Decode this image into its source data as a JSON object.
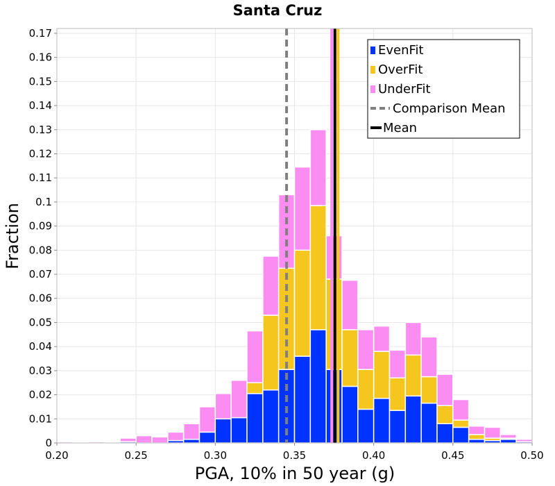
{
  "chart_data": {
    "type": "bar",
    "stacked": true,
    "title": "Santa Cruz",
    "xlabel": "PGA, 10% in 50 year (g)",
    "ylabel": "Fraction",
    "xlim": [
      0.2,
      0.5
    ],
    "ylim": [
      0,
      0.172
    ],
    "bin_width": 0.01,
    "xticks": [
      "0.20",
      "0.25",
      "0.30",
      "0.35",
      "0.40",
      "0.45",
      "0.50"
    ],
    "yticks": [
      "0",
      "0.01",
      "0.02",
      "0.03",
      "0.04",
      "0.05",
      "0.06",
      "0.07",
      "0.08",
      "0.09",
      "0.1",
      "0.11",
      "0.12",
      "0.13",
      "0.14",
      "0.15",
      "0.16",
      "0.17"
    ],
    "bin_starts": [
      0.2,
      0.21,
      0.22,
      0.23,
      0.24,
      0.25,
      0.26,
      0.27,
      0.28,
      0.29,
      0.3,
      0.31,
      0.32,
      0.33,
      0.34,
      0.35,
      0.36,
      0.37,
      0.38,
      0.39,
      0.4,
      0.41,
      0.42,
      0.43,
      0.44,
      0.45,
      0.46,
      0.47,
      0.48,
      0.49
    ],
    "series": [
      {
        "name": "EvenFit",
        "color": "#0033ff",
        "values": [
          0,
          0,
          0,
          0,
          0.0005,
          0,
          0,
          0.001,
          0.0015,
          0.0045,
          0.01,
          0.0105,
          0.0205,
          0.022,
          0.0305,
          0.036,
          0.047,
          0.0305,
          0.0235,
          0.014,
          0.0185,
          0.0135,
          0.0195,
          0.0165,
          0.008,
          0.0065,
          0.0015,
          0.001,
          0.0015,
          0.0005
        ]
      },
      {
        "name": "OverFit",
        "color": "#f5c61e",
        "values": [
          0,
          0,
          0,
          0,
          0,
          0,
          0,
          0,
          0,
          0,
          0,
          0,
          0.0045,
          0.031,
          0.042,
          0.044,
          0.0515,
          0.0375,
          0.0235,
          0.0165,
          0.0195,
          0.0135,
          0.017,
          0.011,
          0.0075,
          0.003,
          0.002,
          0.001,
          0.0005,
          0
        ]
      },
      {
        "name": "UnderFit",
        "color": "#fb8cf2",
        "values": [
          0.0005,
          0,
          0.0005,
          0,
          0.0015,
          0.003,
          0.0025,
          0.0035,
          0.0065,
          0.0105,
          0.0105,
          0.0155,
          0.0215,
          0.0245,
          0.0305,
          0.0345,
          0.0315,
          0.018,
          0.0205,
          0.0165,
          0.0105,
          0.0115,
          0.0135,
          0.0165,
          0.013,
          0.0085,
          0.0035,
          0.0045,
          0.0015,
          0.001
        ]
      }
    ],
    "reference_lines": [
      {
        "name": "Comparison Mean",
        "x": 0.345,
        "color": "#808080",
        "style": "dashed"
      },
      {
        "name": "Mean",
        "x": 0.3755,
        "color": "#000000",
        "style": "solid"
      },
      {
        "name": "UnderFit mean",
        "x": 0.3735,
        "color": "#fb8cf2",
        "style": "solid",
        "in_legend": false
      },
      {
        "name": "OverFit mean",
        "x": 0.3775,
        "color": "#f5c61e",
        "style": "solid",
        "in_legend": false
      }
    ],
    "legend": {
      "position": "top-right",
      "entries": [
        {
          "label": "EvenFit",
          "kind": "box",
          "color": "#0033ff"
        },
        {
          "label": "OverFit",
          "kind": "box",
          "color": "#f5c61e"
        },
        {
          "label": "UnderFit",
          "kind": "box",
          "color": "#fb8cf2"
        },
        {
          "label": "Comparison Mean",
          "kind": "dash",
          "color": "#808080"
        },
        {
          "label": "Mean",
          "kind": "line",
          "color": "#000000"
        }
      ]
    },
    "grid": true
  }
}
